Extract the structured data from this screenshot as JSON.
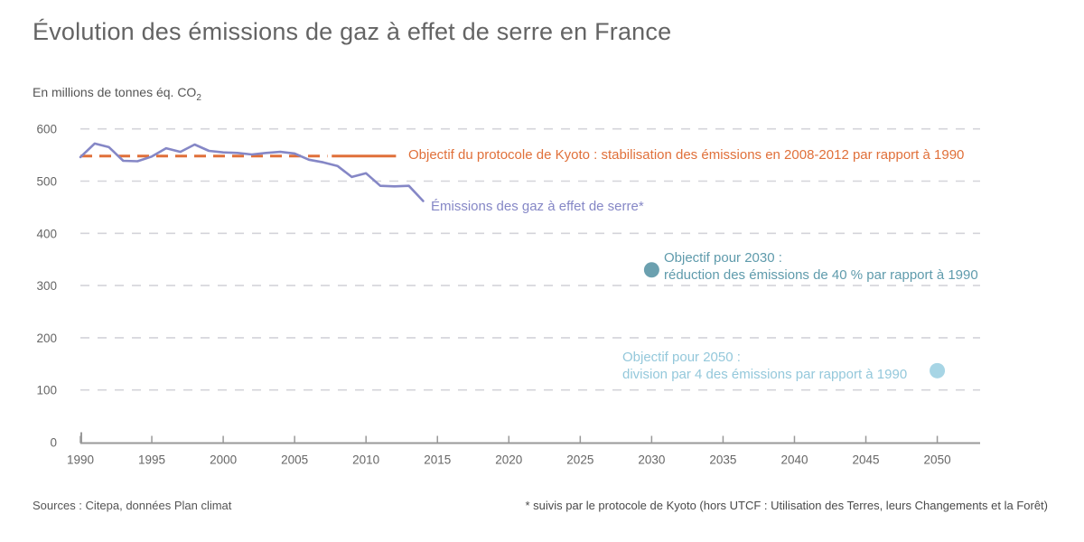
{
  "header": {
    "title": "Évolution des émissions de gaz à effet de serre en France"
  },
  "unit": {
    "label": "En millions de tonnes éq. CO",
    "subscript": "2"
  },
  "colors": {
    "series_purple": "#8587c6",
    "kyoto_orange": "#e0703a",
    "objective_2030_teal": "#6ba0af",
    "objective_2030_text": "#5f9bac",
    "objective_2050_blue": "#a7d5e5",
    "objective_2050_text": "#94c8db",
    "gridline": "#d4d4da",
    "axis": "#999999",
    "tick_text": "#666666",
    "title_text": "#646464"
  },
  "chart_data": {
    "type": "line",
    "title": "Évolution des émissions de gaz à effet de serre en France",
    "ylabel": "En millions de tonnes éq. CO2",
    "xlabel": "",
    "xlim": [
      1990,
      2053
    ],
    "ylim": [
      0,
      600
    ],
    "grid": "horizontal-dashed",
    "legend_position": "inline-annotations",
    "x_ticks": [
      1990,
      1995,
      2000,
      2005,
      2010,
      2015,
      2020,
      2025,
      2030,
      2035,
      2040,
      2045,
      2050
    ],
    "y_ticks": [
      0,
      100,
      200,
      300,
      400,
      500,
      600
    ],
    "series": [
      {
        "name": "Émissions des gaz à effet de serre*",
        "color": "#8587c6",
        "x": [
          1990,
          1991,
          1992,
          1993,
          1994,
          1995,
          1996,
          1997,
          1998,
          1999,
          2000,
          2001,
          2002,
          2003,
          2004,
          2005,
          2006,
          2007,
          2008,
          2009,
          2010,
          2011,
          2012,
          2013,
          2014
        ],
        "values": [
          546,
          572,
          565,
          539,
          538,
          547,
          563,
          556,
          570,
          558,
          555,
          554,
          551,
          554,
          556,
          553,
          541,
          536,
          529,
          508,
          515,
          491,
          490,
          491,
          462
        ]
      }
    ],
    "reference_line": {
      "label": "Objectif du protocole de Kyoto : stabilisation des émissions en 2008-2012 par rapport à 1990",
      "value": 548,
      "color": "#e0703a",
      "dashed_from": 1990,
      "dashed_to": 2007.3,
      "solid_from": 2007.6,
      "solid_to": 2012.1
    },
    "objectives": [
      {
        "year": 2030,
        "value": 330,
        "dot_color": "#6ba0af",
        "text_color": "#5f9bac",
        "label_line1": "Objectif pour 2030 :",
        "label_line2": "réduction des émissions de 40 % par rapport à 1990"
      },
      {
        "year": 2050,
        "value": 137,
        "dot_color": "#a7d5e5",
        "text_color": "#94c8db",
        "label_line1": "Objectif pour 2050 :",
        "label_line2": "division par 4 des émissions par rapport à 1990"
      }
    ]
  },
  "footer": {
    "source": "Sources : Citepa, données Plan climat",
    "note": "* suivis par le protocole de Kyoto (hors UTCF : Utilisation des Terres, leurs Changements et la Forêt)"
  }
}
